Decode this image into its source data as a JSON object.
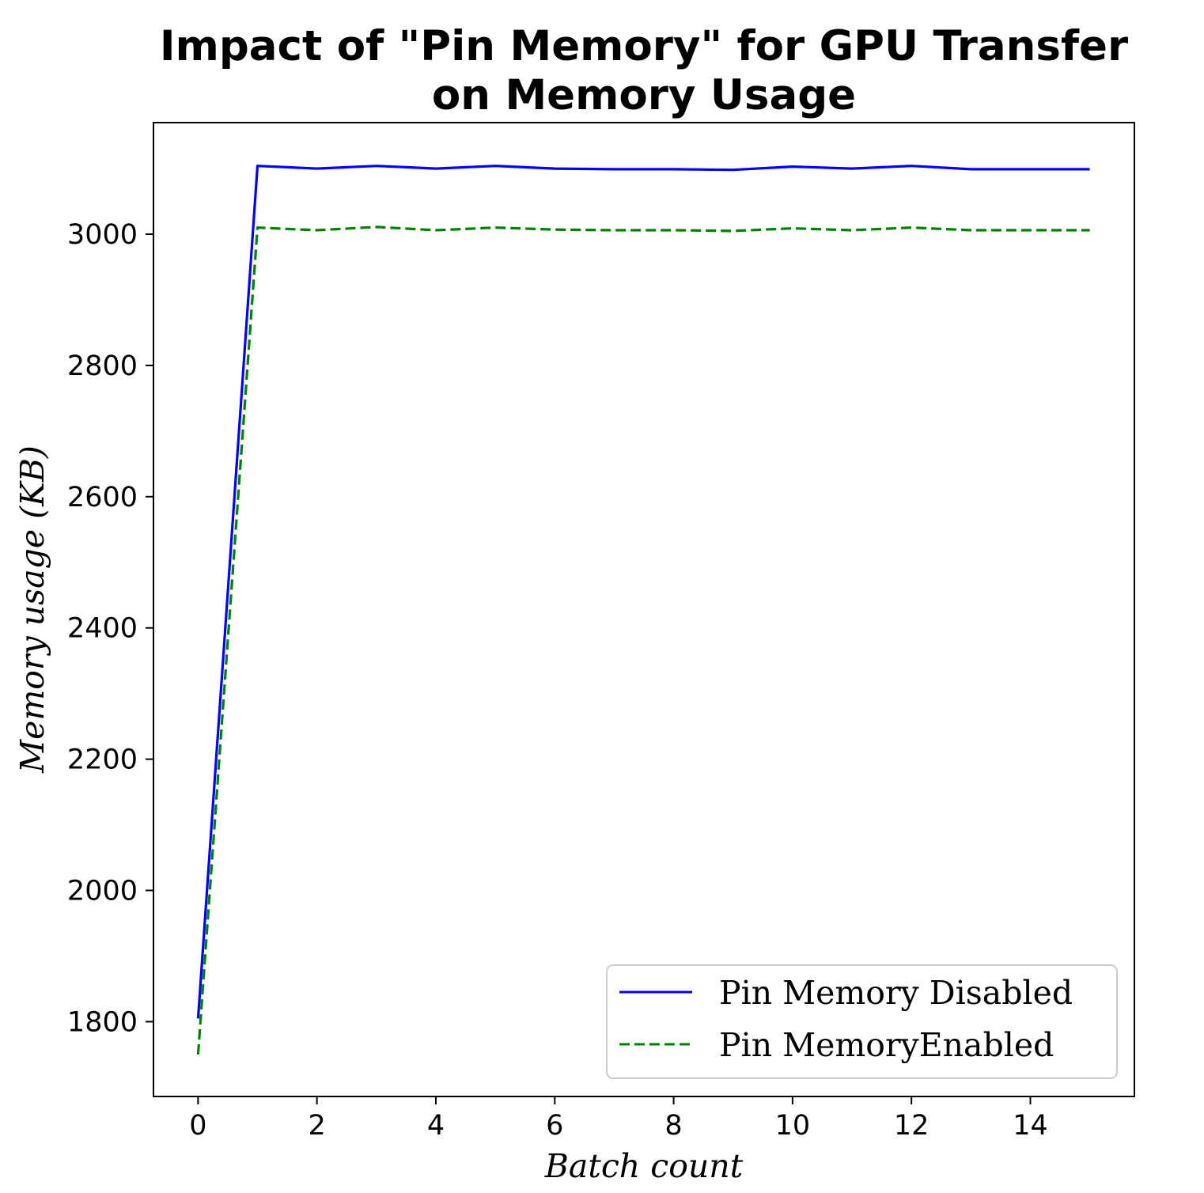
{
  "chart_data": {
    "type": "line",
    "title_lines": [
      "Impact of \"Pin Memory\" for GPU Transfer",
      "on Memory Usage"
    ],
    "xlabel": "Batch count",
    "ylabel": "Memory usage (KB)",
    "x": [
      0,
      1,
      2,
      3,
      4,
      5,
      6,
      7,
      8,
      9,
      10,
      11,
      12,
      13,
      14,
      15
    ],
    "xlim": [
      -0.75,
      15.75
    ],
    "ylim": [
      1686,
      3170
    ],
    "xticks": [
      0,
      2,
      4,
      6,
      8,
      10,
      12,
      14
    ],
    "yticks": [
      1800,
      2000,
      2200,
      2400,
      2600,
      2800,
      3000
    ],
    "grid": false,
    "legend_position": "lower-right",
    "series": [
      {
        "name": "Pin Memory Disabled",
        "color": "#0000ff",
        "line_style": "solid",
        "values": [
          1805,
          3104,
          3100,
          3104,
          3100,
          3104,
          3100,
          3099,
          3099,
          3098,
          3103,
          3100,
          3104,
          3099,
          3099,
          3099
        ]
      },
      {
        "name": "Pin MemoryEnabled",
        "color": "#008000",
        "line_style": "dashed",
        "values": [
          1750,
          3010,
          3006,
          3011,
          3006,
          3010,
          3007,
          3006,
          3006,
          3005,
          3009,
          3006,
          3010,
          3006,
          3006,
          3006
        ]
      }
    ]
  }
}
